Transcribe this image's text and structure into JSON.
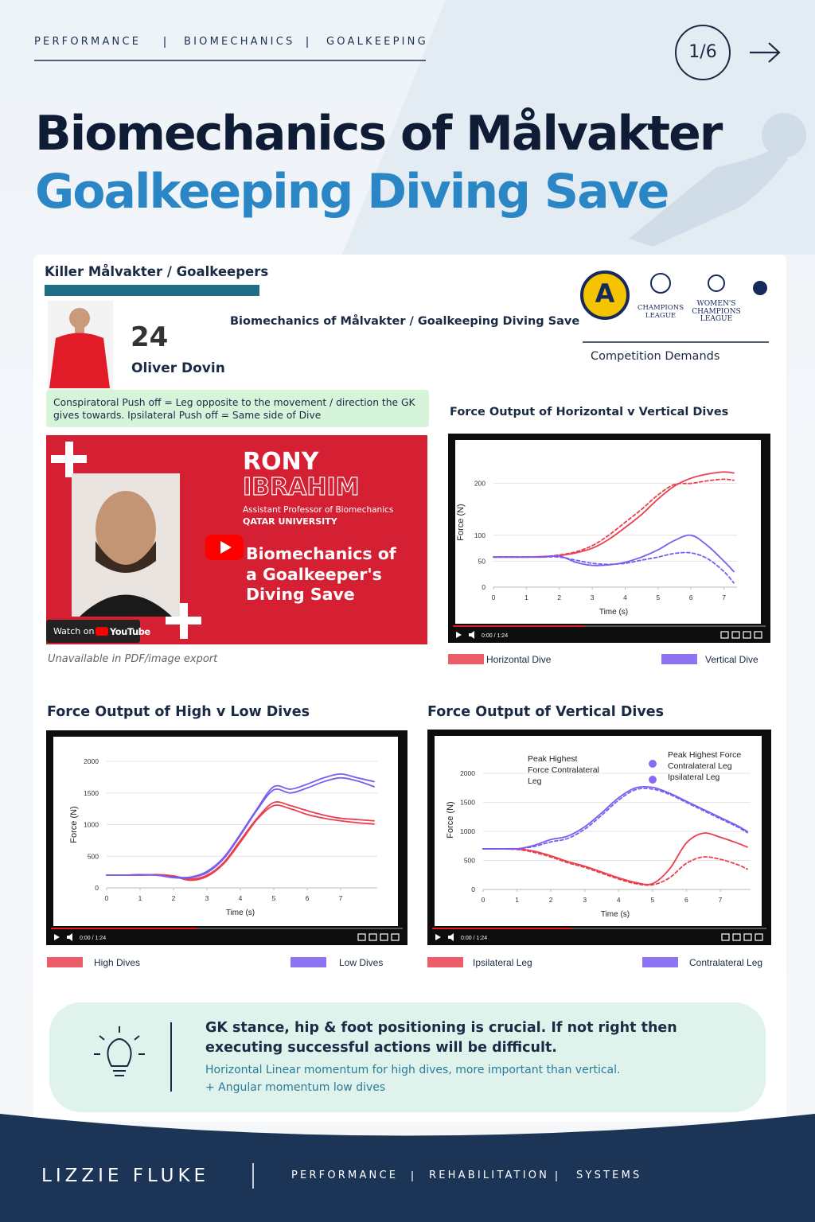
{
  "header": {
    "nav": [
      "PERFORMANCE",
      "BIOMECHANICS",
      "GOALKEEPING"
    ],
    "page": "1/6"
  },
  "title": {
    "line1": "Biomechanics of Målvakter",
    "line2": "Goalkeeping Diving Save"
  },
  "profile": {
    "heading": "Killer Målvakter / Goalkeepers",
    "number": "24",
    "name": "Oliver Dovin",
    "subtitle": "Biomechanics of Målvakter  / Goalkeeping Diving Save"
  },
  "competitions": {
    "logos": [
      {
        "lines": [
          "A"
        ]
      },
      {
        "lines": [
          "CHAMPIONS",
          "LEAGUE"
        ]
      },
      {
        "lines": [
          "WOMEN'S",
          "CHAMPIONS",
          "LEAGUE"
        ]
      }
    ],
    "label": "Competition Demands"
  },
  "note": "Conspiratoral Push off = Leg opposite to the movement / direction the GK gives towards. Ipsilateral Push off = Same side of Dive",
  "video": {
    "first_name": "RONY",
    "last_name": "IBRAHIM",
    "role": "Assistant Professor of Biomechanics",
    "affiliation": "QATAR UNIVERSITY",
    "title_lines": [
      "Biomechanics of",
      "a Goalkeeper's",
      "Diving Save"
    ],
    "watch": "Watch on",
    "platform": "YouTube",
    "caption": "Unavailable in PDF/image export"
  },
  "chart_data": [
    {
      "type": "line",
      "title": "Force Output of Horizontal v Vertical Dives",
      "x_label": "Time (s)",
      "y_label": "Force (N)",
      "x": [
        0,
        0.5,
        1,
        1.5,
        2,
        2.5,
        3,
        3.5,
        4,
        4.5,
        5,
        5.5,
        6,
        6.5,
        7,
        7.3
      ],
      "xlim": [
        0,
        7.3
      ],
      "xticks": [
        0,
        1,
        2,
        3,
        4,
        5,
        6,
        7
      ],
      "ylim": [
        0,
        250
      ],
      "yticks": [
        0,
        50,
        100,
        200
      ],
      "grid": true,
      "series": [
        {
          "name": "Horizontal Dive",
          "color": "#ea3f4f",
          "trials": [
            [
              58,
              58,
              58,
              59,
              61,
              66,
              75,
              92,
              115,
              140,
              170,
              195,
              210,
              218,
              222,
              220
            ],
            [
              58,
              58,
              58,
              59,
              62,
              68,
              80,
              100,
              125,
              150,
              178,
              198,
              200,
              205,
              208,
              206
            ]
          ]
        },
        {
          "name": "Vertical Dive",
          "color": "#7a5cf0",
          "trials": [
            [
              58,
              58,
              58,
              58,
              60,
              48,
              42,
              43,
              48,
              58,
              72,
              90,
              100,
              80,
              50,
              30
            ],
            [
              58,
              58,
              58,
              58,
              58,
              52,
              46,
              44,
              46,
              52,
              58,
              65,
              66,
              55,
              30,
              8
            ]
          ]
        }
      ],
      "player_time": "0:00 / 1:24"
    },
    {
      "type": "line",
      "title": "Force Output of High v Low Dives",
      "x_label": "Time (s)",
      "y_label": "Force (N)",
      "x": [
        0,
        0.5,
        1,
        1.5,
        2,
        2.5,
        3,
        3.5,
        4,
        4.5,
        5,
        5.5,
        6,
        6.5,
        7,
        7.5,
        8
      ],
      "xlim": [
        0,
        8
      ],
      "xticks": [
        0,
        1,
        2,
        3,
        4,
        5,
        6,
        7
      ],
      "ylim": [
        0,
        2000
      ],
      "yticks": [
        0,
        500,
        1000,
        1500,
        2000
      ],
      "grid": true,
      "series": [
        {
          "name": "High Dives",
          "color": "#ea3f4f",
          "trials": [
            [
              200,
              200,
              200,
              210,
              190,
              140,
              200,
              400,
              750,
              1100,
              1350,
              1300,
              1220,
              1150,
              1100,
              1080,
              1060
            ],
            [
              200,
              200,
              200,
              205,
              180,
              120,
              180,
              380,
              720,
              1080,
              1300,
              1250,
              1160,
              1100,
              1060,
              1030,
              1010
            ]
          ]
        },
        {
          "name": "Low Dives",
          "color": "#7a5cf0",
          "trials": [
            [
              200,
              200,
              210,
              200,
              170,
              170,
              260,
              480,
              850,
              1250,
              1600,
              1560,
              1640,
              1740,
              1800,
              1740,
              1680
            ],
            [
              200,
              200,
              205,
              200,
              160,
              160,
              240,
              460,
              830,
              1230,
              1550,
              1500,
              1580,
              1680,
              1740,
              1690,
              1600
            ]
          ]
        }
      ],
      "player_time": "0:00 / 1:24"
    },
    {
      "type": "line",
      "title": "Force Output of Vertical Dives",
      "x_label": "Time (s)",
      "y_label": "Force (N)",
      "x": [
        0,
        0.5,
        1,
        1.5,
        2,
        2.5,
        3,
        3.5,
        4,
        4.5,
        5,
        5.5,
        6,
        6.5,
        7,
        7.5,
        7.8
      ],
      "xlim": [
        0,
        7.8
      ],
      "xticks": [
        0,
        1,
        2,
        3,
        4,
        5,
        6,
        7
      ],
      "ylim": [
        0,
        2400
      ],
      "yticks": [
        0,
        500,
        1000,
        1500,
        2000
      ],
      "grid": true,
      "series": [
        {
          "name": "Ipsilateral Leg",
          "color": "#ea3f4f",
          "trials": [
            [
              700,
              700,
              700,
              660,
              580,
              480,
              400,
              300,
              200,
              120,
              100,
              350,
              800,
              970,
              900,
              800,
              730
            ],
            [
              700,
              700,
              690,
              640,
              560,
              460,
              380,
              280,
              180,
              100,
              80,
              200,
              450,
              560,
              520,
              430,
              350
            ]
          ]
        },
        {
          "name": "Contralateral Leg",
          "color": "#7a5cf0",
          "trials": [
            [
              700,
              700,
              700,
              760,
              860,
              920,
              1080,
              1320,
              1580,
              1750,
              1760,
              1660,
              1520,
              1380,
              1240,
              1100,
              1000
            ],
            [
              700,
              700,
              700,
              740,
              820,
              880,
              1040,
              1280,
              1540,
              1720,
              1730,
              1640,
              1500,
              1360,
              1220,
              1080,
              980
            ]
          ]
        }
      ],
      "annotations": [
        {
          "lines": [
            "Peak Highest",
            "Force Contralateral",
            "Leg"
          ]
        },
        {
          "lines": [
            "Peak Highest Force",
            "Contralateral Leg",
            "Ipsilateral Leg"
          ]
        }
      ],
      "player_time": "0:00 / 1:24"
    }
  ],
  "tip": {
    "headline": "GK stance, hip & foot positioning is crucial. If not right then executing successful actions will be difficult.",
    "lines": [
      "Horizontal Linear momentum for high dives, more important than vertical.",
      "+ Angular momentum low dives"
    ]
  },
  "footer": {
    "brand": "LIZZIE FLUKE",
    "nav": [
      "PERFORMANCE",
      "REHABILITATION",
      "SYSTEMS"
    ]
  }
}
